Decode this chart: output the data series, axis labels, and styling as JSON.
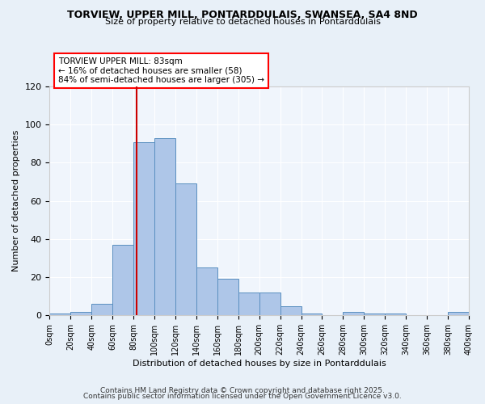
{
  "title_line1": "TORVIEW, UPPER MILL, PONTARDDULAIS, SWANSEA, SA4 8ND",
  "title_line2": "Size of property relative to detached houses in Pontarddulais",
  "xlabel": "Distribution of detached houses by size in Pontarddulais",
  "ylabel": "Number of detached properties",
  "bin_edges": [
    0,
    20,
    40,
    60,
    80,
    100,
    120,
    140,
    160,
    180,
    200,
    220,
    240,
    260,
    280,
    300,
    320,
    340,
    360,
    380,
    400
  ],
  "bar_heights": [
    1,
    2,
    6,
    37,
    91,
    93,
    69,
    25,
    19,
    12,
    12,
    5,
    1,
    0,
    2,
    1,
    1,
    0,
    0,
    2
  ],
  "bar_color": "#aec6e8",
  "bar_edge_color": "#5a8fc0",
  "property_size": 83,
  "annotation_title": "TORVIEW UPPER MILL: 83sqm",
  "annotation_line1": "← 16% of detached houses are smaller (58)",
  "annotation_line2": "84% of semi-detached houses are larger (305) →",
  "vline_color": "#cc0000",
  "ylim": [
    0,
    120
  ],
  "yticks": [
    0,
    20,
    40,
    60,
    80,
    100,
    120
  ],
  "footer_line1": "Contains HM Land Registry data © Crown copyright and database right 2025.",
  "footer_line2": "Contains public sector information licensed under the Open Government Licence v3.0.",
  "bg_color": "#e8f0f8",
  "plot_bg_color": "#f0f5fc"
}
